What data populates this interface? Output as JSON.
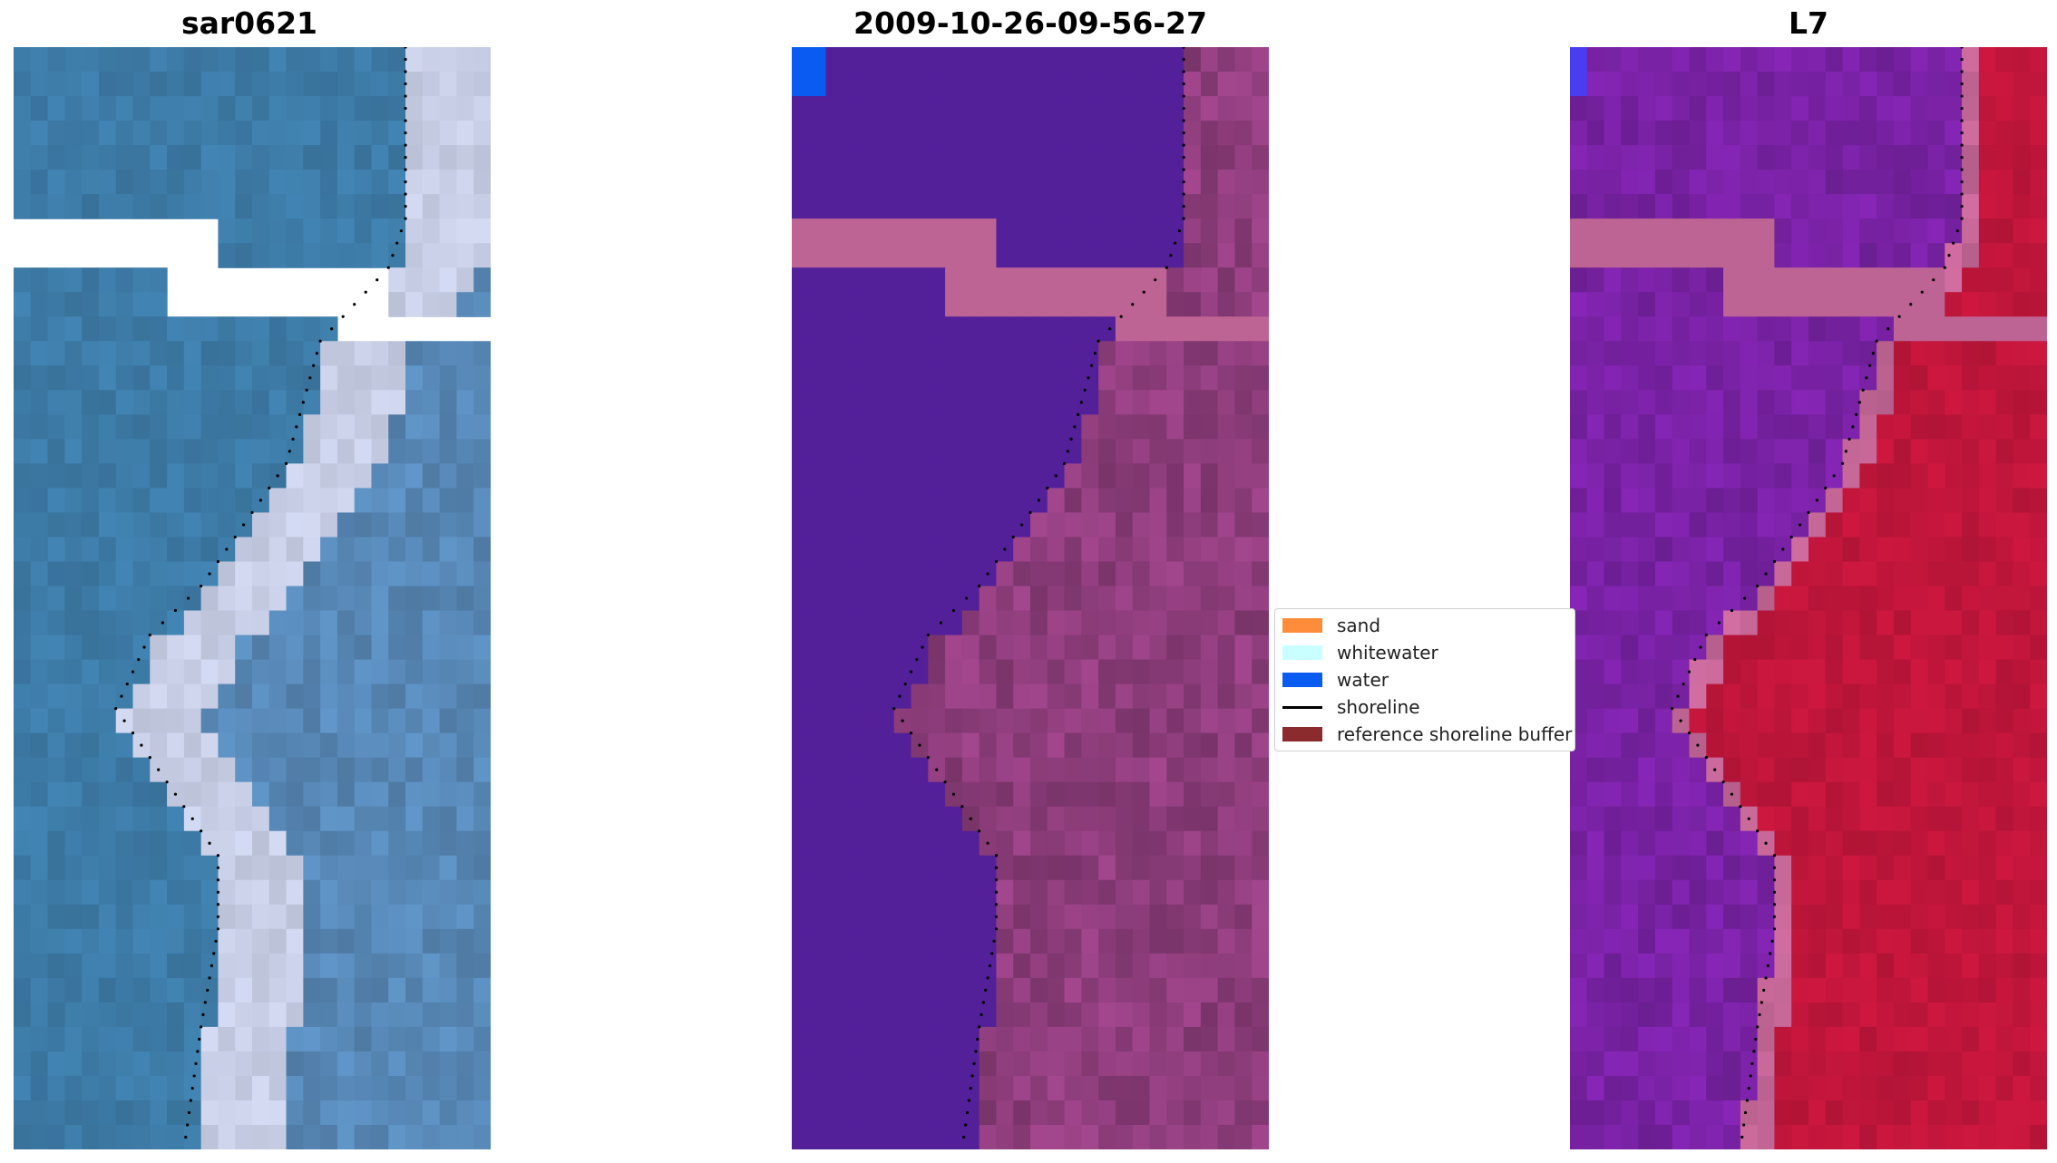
{
  "panels": [
    {
      "title": "sar0621",
      "type": "rgb"
    },
    {
      "title": "2009-10-26-09-56-27",
      "type": "classification"
    },
    {
      "title": "L7",
      "type": "index"
    }
  ],
  "legend": {
    "items": [
      {
        "label": "sand",
        "kind": "patch",
        "color": "#ff8c3a"
      },
      {
        "label": "whitewater",
        "kind": "patch",
        "color": "#c9ffff"
      },
      {
        "label": "water",
        "kind": "patch",
        "color": "#0a5cf0"
      },
      {
        "label": "shoreline",
        "kind": "line",
        "color": "#000000"
      },
      {
        "label": "reference shoreline buffer",
        "kind": "patch",
        "color": "#8b2b2e"
      }
    ]
  },
  "colors": {
    "sea_rgb": "#3d7ba7",
    "surf_rgb": "#cfd6ee",
    "water_class": "#53209a",
    "land_class": "#8e3d7c",
    "nodata_band": "#be6494",
    "water_index": "#7a22a6",
    "land_index": "#c4163c"
  }
}
